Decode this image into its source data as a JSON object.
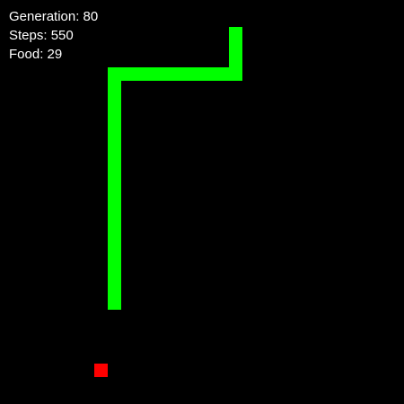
{
  "hud": {
    "generation": "Generation: 80",
    "steps": "Steps: 550",
    "food": "Food: 29"
  },
  "colors": {
    "background": "#000000",
    "snake": "#00ff00",
    "food": "#ff0000",
    "hud_text": "#ffffff"
  }
}
